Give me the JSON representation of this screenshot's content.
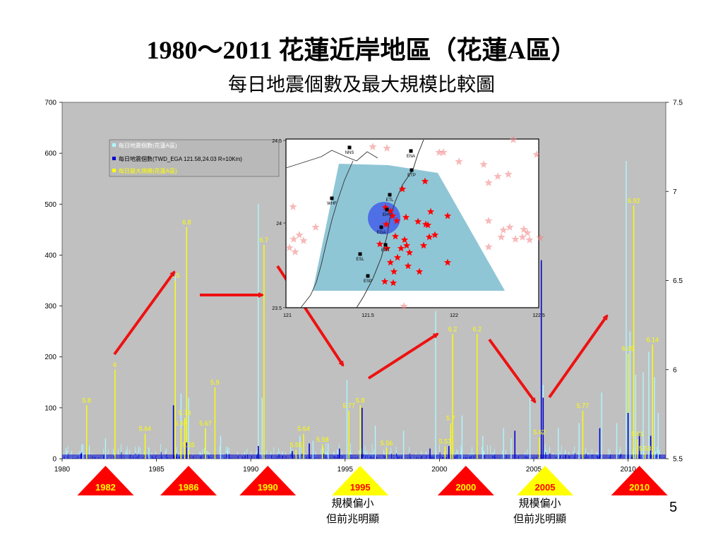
{
  "title": "1980～2011 花蓮近岸地區（花蓮A區）",
  "subtitle": "每日地震個數及最大規模比較圖",
  "page_number": "5",
  "notes": [
    {
      "line1": "規模偏小",
      "line2": "但前兆明顯"
    },
    {
      "line1": "規模偏小",
      "line2": "但前兆明顯"
    }
  ],
  "colors": {
    "plot_bg": "#c0c0c0",
    "count_a": "#aef7ff",
    "count_ega": "#0000cc",
    "max_mag": "#ffff00",
    "arrow": "#ee1111",
    "triangle_red": "#ff0000",
    "triangle_yellow": "#ffff00",
    "inset_bg": "#ffffff",
    "inset_zone": "#8fc6d6",
    "inset_circle": "#4f6fe6"
  },
  "chart_data": {
    "type": "bar",
    "x_range": [
      1980,
      2012
    ],
    "x_ticks": [
      "1980",
      "1985",
      "1990",
      "1995",
      "2000",
      "2005",
      "2010"
    ],
    "y_left": {
      "range": [
        0,
        700
      ],
      "ticks": [
        "0",
        "100",
        "200",
        "300",
        "400",
        "500",
        "600",
        "700"
      ]
    },
    "y_right": {
      "range": [
        5.5,
        7.5
      ],
      "ticks": [
        "5.5",
        "6",
        "6.5",
        "7",
        "7.5"
      ]
    },
    "legend": {
      "position": "top-left",
      "items": [
        {
          "label": "每日地震個數(花蓮A區)",
          "color": "#aef7ff"
        },
        {
          "label": "每日地震個數(TWD_EGA 121.58,24.03 R=10Km)",
          "color": "#0000cc"
        },
        {
          "label": "每日最大規模(花蓮A區)",
          "color": "#ffff00"
        }
      ]
    },
    "series": [
      {
        "name": "每日地震個數(花蓮A區)",
        "points": [
          [
            1981.1,
            28
          ],
          [
            1982.3,
            40
          ],
          [
            1984.6,
            22
          ],
          [
            1986.0,
            360
          ],
          [
            1986.3,
            128
          ],
          [
            1986.6,
            455
          ],
          [
            1986.7,
            120
          ],
          [
            1987.6,
            60
          ],
          [
            1988.4,
            45
          ],
          [
            1990.4,
            500
          ],
          [
            1990.6,
            120
          ],
          [
            1992.6,
            45
          ],
          [
            1993.3,
            35
          ],
          [
            1994.1,
            30
          ],
          [
            1995.1,
            155
          ],
          [
            1995.8,
            80
          ],
          [
            1996.6,
            65
          ],
          [
            1998.1,
            55
          ],
          [
            1999.8,
            290
          ],
          [
            2000.6,
            60
          ],
          [
            2001.2,
            85
          ],
          [
            2002.3,
            45
          ],
          [
            2003.4,
            60
          ],
          [
            2003.8,
            40
          ],
          [
            2004.8,
            130
          ],
          [
            2005.5,
            145
          ],
          [
            2006.3,
            60
          ],
          [
            2007.4,
            70
          ],
          [
            2008.6,
            130
          ],
          [
            2009.4,
            70
          ],
          [
            2009.9,
            585
          ],
          [
            2010.1,
            250
          ],
          [
            2010.3,
            220
          ],
          [
            2010.4,
            165
          ],
          [
            2010.8,
            170
          ],
          [
            2011.1,
            210
          ],
          [
            2011.4,
            160
          ],
          [
            2011.6,
            90
          ]
        ]
      },
      {
        "name": "每日地震個數(TWD_EGA 121.58,24.03 R=10Km)",
        "points": [
          [
            1981.0,
            10
          ],
          [
            1985.9,
            105
          ],
          [
            1986.6,
            32
          ],
          [
            1990.4,
            25
          ],
          [
            1992.2,
            15
          ],
          [
            1993.1,
            30
          ],
          [
            1994.7,
            20
          ],
          [
            1995.9,
            100
          ],
          [
            1999.5,
            20
          ],
          [
            2000.5,
            25
          ],
          [
            2004.0,
            55
          ],
          [
            2005.4,
            390
          ],
          [
            2005.5,
            120
          ],
          [
            2008.5,
            60
          ],
          [
            2010.0,
            90
          ],
          [
            2010.6,
            50
          ],
          [
            2011.2,
            45
          ]
        ]
      },
      {
        "name": "每日最大規模(花蓮A區)",
        "points": [
          [
            1981.3,
            5.8
          ],
          [
            1982.8,
            6.0
          ],
          [
            1984.4,
            5.64
          ],
          [
            1986.0,
            6.5
          ],
          [
            1986.3,
            5.67
          ],
          [
            1986.5,
            5.73
          ],
          [
            1986.6,
            6.8
          ],
          [
            1986.7,
            5.55
          ],
          [
            1987.6,
            5.67
          ],
          [
            1988.1,
            5.9
          ],
          [
            1990.7,
            6.7
          ],
          [
            1992.4,
            5.55
          ],
          [
            1992.8,
            5.64
          ],
          [
            1993.8,
            5.58
          ],
          [
            1995.2,
            5.77
          ],
          [
            1995.8,
            5.8
          ],
          [
            1997.2,
            5.56
          ],
          [
            2000.3,
            5.57
          ],
          [
            2000.6,
            5.7
          ],
          [
            2000.7,
            6.2
          ],
          [
            2002.0,
            6.2
          ],
          [
            2005.3,
            5.62
          ],
          [
            2007.6,
            5.77
          ],
          [
            2010.0,
            6.09
          ],
          [
            2010.3,
            6.92
          ],
          [
            2010.5,
            5.61
          ],
          [
            2010.9,
            5.53
          ],
          [
            2011.3,
            6.14
          ]
        ]
      }
    ],
    "data_labels": [
      {
        "x": 1981.3,
        "y": 5.8,
        "text": "5.8"
      },
      {
        "x": 1982.8,
        "y": 6.0,
        "text": "6"
      },
      {
        "x": 1984.4,
        "y": 5.64,
        "text": "5.64"
      },
      {
        "x": 1986.0,
        "y": 6.5,
        "text": "6.5"
      },
      {
        "x": 1986.3,
        "y": 5.67,
        "text": "5.67"
      },
      {
        "x": 1986.5,
        "y": 5.73,
        "text": "5.73"
      },
      {
        "x": 1986.6,
        "y": 6.8,
        "text": "6.8"
      },
      {
        "x": 1986.7,
        "y": 5.55,
        "text": "5.55"
      },
      {
        "x": 1987.6,
        "y": 5.67,
        "text": "5.67"
      },
      {
        "x": 1988.1,
        "y": 5.9,
        "text": "5.9"
      },
      {
        "x": 1990.7,
        "y": 6.7,
        "text": "6.7"
      },
      {
        "x": 1992.4,
        "y": 5.55,
        "text": "5.55"
      },
      {
        "x": 1992.8,
        "y": 5.64,
        "text": "5.64"
      },
      {
        "x": 1993.8,
        "y": 5.58,
        "text": "5.58"
      },
      {
        "x": 1995.2,
        "y": 5.77,
        "text": "5.77"
      },
      {
        "x": 1995.8,
        "y": 5.8,
        "text": "5.8"
      },
      {
        "x": 1997.2,
        "y": 5.56,
        "text": "5.56"
      },
      {
        "x": 2000.3,
        "y": 5.57,
        "text": "5.57"
      },
      {
        "x": 2000.6,
        "y": 5.7,
        "text": "5.7"
      },
      {
        "x": 2000.7,
        "y": 6.2,
        "text": "6.2"
      },
      {
        "x": 2002.0,
        "y": 6.2,
        "text": "6.2"
      },
      {
        "x": 2005.3,
        "y": 5.62,
        "text": "5.62"
      },
      {
        "x": 2007.6,
        "y": 5.77,
        "text": "5.77"
      },
      {
        "x": 2010.0,
        "y": 6.09,
        "text": "6.09"
      },
      {
        "x": 2010.3,
        "y": 6.92,
        "text": "6.92"
      },
      {
        "x": 2010.5,
        "y": 5.61,
        "text": "5.61"
      },
      {
        "x": 2010.9,
        "y": 5.53,
        "text": "5.53"
      },
      {
        "x": 2011.3,
        "y": 6.14,
        "text": "6.14"
      }
    ],
    "year_markers": [
      {
        "label": "1982",
        "x": 1982.3,
        "color": "#ff0000",
        "text_color": "#ffff00"
      },
      {
        "label": "1986",
        "x": 1986.7,
        "color": "#ff0000",
        "text_color": "#ffff00"
      },
      {
        "label": "1990",
        "x": 1990.9,
        "color": "#ff0000",
        "text_color": "#ffff00"
      },
      {
        "label": "1995",
        "x": 1995.8,
        "color": "#ffff00",
        "text_color": "#ff0000"
      },
      {
        "label": "2000",
        "x": 2001.4,
        "color": "#ff0000",
        "text_color": "#ffff00"
      },
      {
        "label": "2005",
        "x": 2005.6,
        "color": "#ffff00",
        "text_color": "#ff0000"
      },
      {
        "label": "2010",
        "x": 2010.6,
        "color": "#ff0000",
        "text_color": "#ffff00"
      }
    ]
  },
  "inset_map": {
    "x_ticks": [
      "121",
      "121.5",
      "122",
      "122.5"
    ],
    "y_ticks": [
      "24.5",
      "24",
      "23.5"
    ],
    "stations": [
      "NNS",
      "ENA",
      "ETP",
      "ETL",
      "WHF",
      "EHY",
      "EGA",
      "ENT",
      "ESL",
      "ESP"
    ]
  }
}
